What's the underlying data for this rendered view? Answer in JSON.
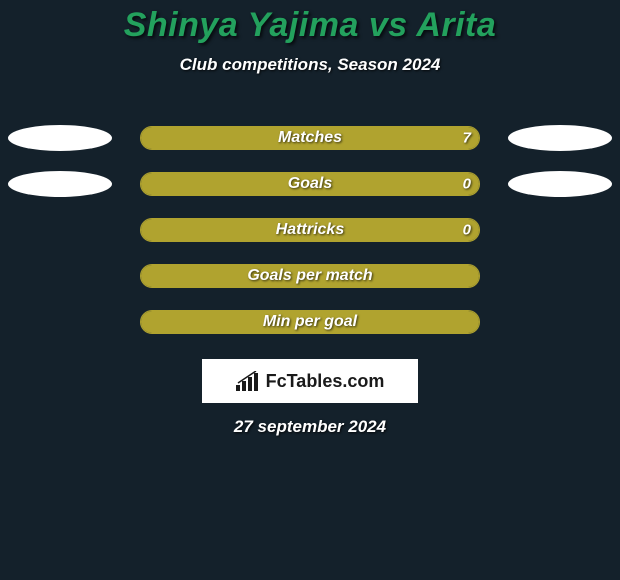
{
  "background_color": "#14212b",
  "title": {
    "text": "Shinya Yajima vs Arita",
    "color": "#23a15d",
    "fontsize": 34
  },
  "subtitle": {
    "text": "Club competitions, Season 2024",
    "color": "#ffffff",
    "fontsize": 17
  },
  "bar_style": {
    "fill_color": "#b0a32f",
    "border_color": "#b0a32f",
    "label_color": "#ffffff",
    "label_fontsize": 16,
    "height": 24,
    "radius": 14
  },
  "ellipse_color": "#ffffff",
  "rows": [
    {
      "label": "Matches",
      "left_value": "",
      "right_value": "7",
      "left_fill_pct": 0,
      "right_fill_pct": 100,
      "show_left_ellipse": true,
      "show_right_ellipse": true
    },
    {
      "label": "Goals",
      "left_value": "",
      "right_value": "0",
      "left_fill_pct": 0,
      "right_fill_pct": 100,
      "show_left_ellipse": true,
      "show_right_ellipse": true
    },
    {
      "label": "Hattricks",
      "left_value": "",
      "right_value": "0",
      "left_fill_pct": 0,
      "right_fill_pct": 100,
      "show_left_ellipse": false,
      "show_right_ellipse": false
    },
    {
      "label": "Goals per match",
      "left_value": "",
      "right_value": "",
      "left_fill_pct": 0,
      "right_fill_pct": 100,
      "show_left_ellipse": false,
      "show_right_ellipse": false
    },
    {
      "label": "Min per goal",
      "left_value": "",
      "right_value": "",
      "left_fill_pct": 0,
      "right_fill_pct": 100,
      "show_left_ellipse": false,
      "show_right_ellipse": false
    }
  ],
  "logo": {
    "text": "FcTables.com",
    "box_bg": "#ffffff",
    "text_color": "#1a1a1a"
  },
  "date": {
    "text": "27 september 2024",
    "color": "#ffffff",
    "fontsize": 17
  }
}
